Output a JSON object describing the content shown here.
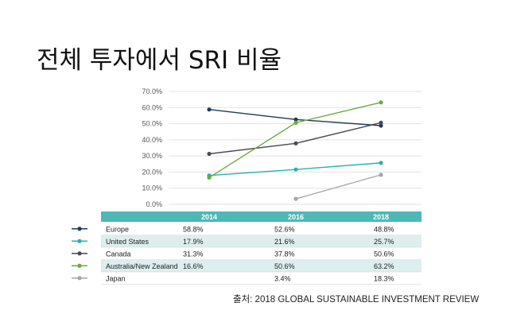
{
  "title": "전체 투자에서 SRI  비율",
  "source": "출처: 2018 GLOBAL SUSTAINABLE INVESTMENT REVIEW",
  "chart_data": {
    "type": "line",
    "x": [
      "2014",
      "2016",
      "2018"
    ],
    "y_ticks": [
      "70.0%",
      "60.0%",
      "50.0%",
      "40.0%",
      "30.0%",
      "20.0%",
      "10.0%",
      "0.0%"
    ],
    "ylim": [
      0,
      70
    ],
    "grid": true,
    "series": [
      {
        "name": "Europe",
        "color": "#1f3b57",
        "values": [
          58.8,
          52.6,
          48.8
        ],
        "labels": [
          "58.8%",
          "52.6%",
          "48.8%"
        ]
      },
      {
        "name": "United States",
        "color": "#25b3b0",
        "values": [
          17.9,
          21.6,
          25.7
        ],
        "labels": [
          "17.9%",
          "21.6%",
          "25.7%"
        ]
      },
      {
        "name": "Canada",
        "color": "#4a4a52",
        "values": [
          31.3,
          37.8,
          50.6
        ],
        "labels": [
          "31.3%",
          "37.8%",
          "50.6%"
        ]
      },
      {
        "name": "Australia/New Zealand",
        "color": "#6aab3a",
        "values": [
          16.6,
          50.6,
          63.2
        ],
        "labels": [
          "16.6%",
          "50.6%",
          "63.2%"
        ]
      },
      {
        "name": "Japan",
        "color": "#a6a6a6",
        "values": [
          null,
          3.4,
          18.3
        ],
        "labels": [
          "",
          "3.4%",
          "18.3%"
        ]
      }
    ],
    "table_header_color": "#4db8b5",
    "table_stripe_color": "#dcefee"
  }
}
